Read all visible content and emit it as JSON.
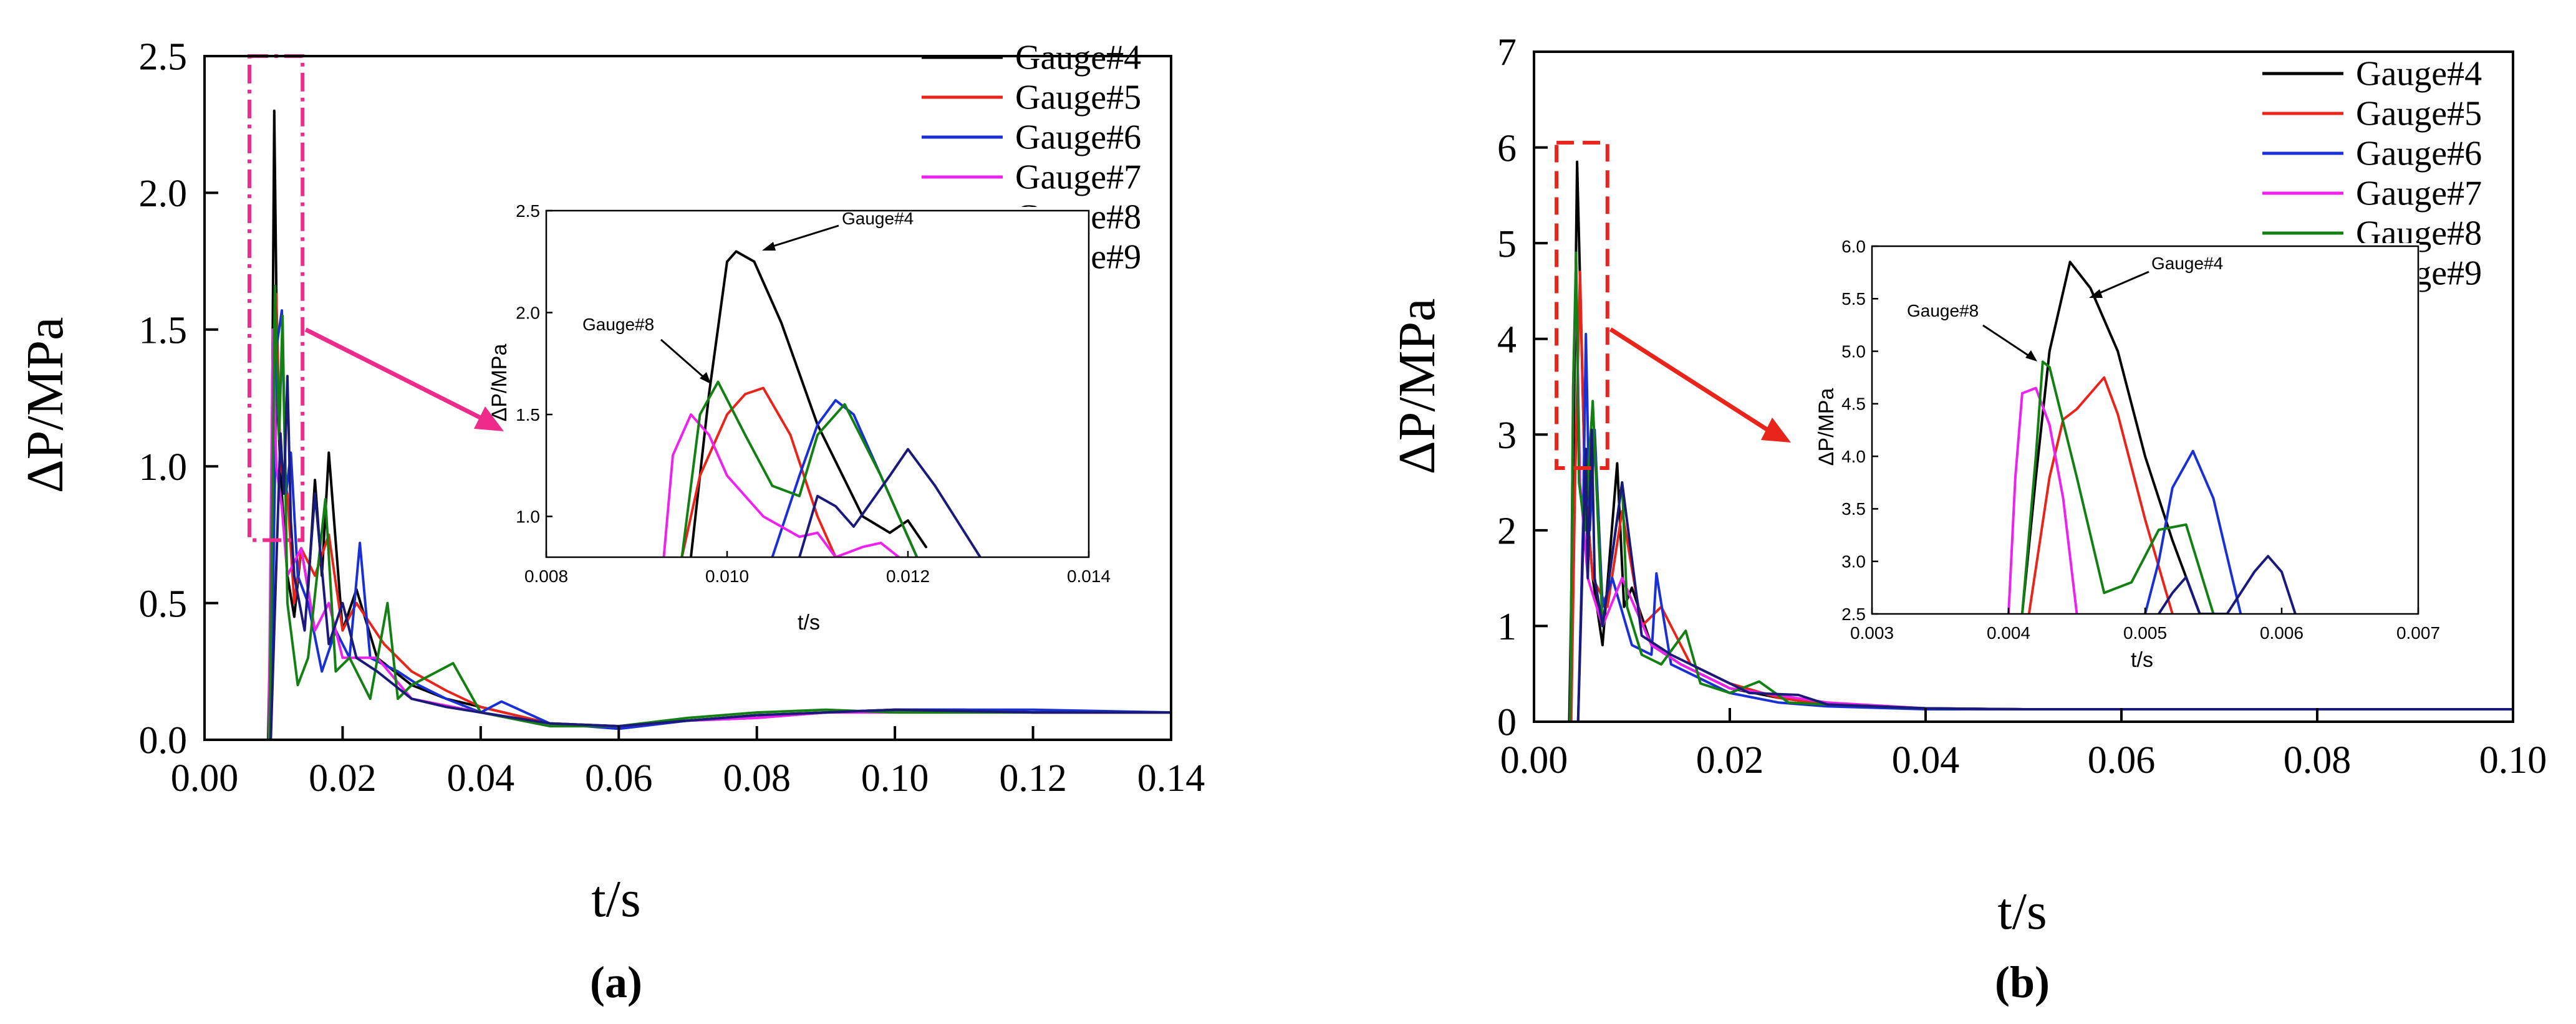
{
  "colors": {
    "Gauge#4": "#000000",
    "Gauge#5": "#e8241b",
    "Gauge#6": "#1830d6",
    "Gauge#7": "#ee22ee",
    "Gauge#8": "#128012",
    "Gauge#9": "#1a1a7a",
    "highlight_a": "#ee2a8a",
    "highlight_b": "#e8241b"
  },
  "chart_data": [
    {
      "type": "line",
      "panel_label": "(a)",
      "xlabel": "t/s",
      "ylabel": "ΔP/MPa",
      "xlim": [
        0,
        0.14
      ],
      "ylim": [
        0,
        2.5
      ],
      "xticks": [
        "0.00",
        "0.02",
        "0.04",
        "0.06",
        "0.08",
        "0.10",
        "0.12",
        "0.14"
      ],
      "yticks": [
        "0.0",
        "0.5",
        "1.0",
        "1.5",
        "2.0",
        "2.5"
      ],
      "legend": "top-right",
      "highlight_box": {
        "x": [
          0.0065,
          0.0142
        ],
        "y": [
          0.73,
          2.5
        ],
        "style": "dash-dot"
      },
      "series": [
        {
          "name": "Gauge#4",
          "x": [
            0,
            0.0092,
            0.0096,
            0.0101,
            0.0106,
            0.0112,
            0.012,
            0.013,
            0.014,
            0.015,
            0.016,
            0.017,
            0.018,
            0.02,
            0.022,
            0.025,
            0.03,
            0.035,
            0.04,
            0.05,
            0.06,
            0.07,
            0.08,
            0.09,
            0.1,
            0.11,
            0.12,
            0.14
          ],
          "y": [
            0,
            0,
            0.5,
            2.3,
            1.2,
            0.9,
            0.6,
            0.45,
            0.7,
            0.55,
            0.95,
            0.6,
            1.05,
            0.4,
            0.55,
            0.3,
            0.2,
            0.15,
            0.12,
            0.06,
            0.05,
            0.07,
            0.09,
            0.1,
            0.11,
            0.11,
            0.1,
            0.1
          ]
        },
        {
          "name": "Gauge#5",
          "x": [
            0,
            0.0095,
            0.0099,
            0.0104,
            0.011,
            0.012,
            0.013,
            0.014,
            0.016,
            0.018,
            0.02,
            0.022,
            0.026,
            0.03,
            0.035,
            0.04,
            0.05,
            0.06,
            0.07,
            0.08,
            0.09,
            0.1,
            0.12,
            0.14
          ],
          "y": [
            0,
            0,
            0.6,
            1.63,
            1.0,
            0.9,
            0.5,
            0.7,
            0.6,
            0.75,
            0.4,
            0.5,
            0.35,
            0.25,
            0.18,
            0.12,
            0.06,
            0.05,
            0.07,
            0.09,
            0.1,
            0.11,
            0.1,
            0.1
          ]
        },
        {
          "name": "Gauge#6",
          "x": [
            0,
            0.0095,
            0.0099,
            0.0105,
            0.0112,
            0.0118,
            0.0125,
            0.0135,
            0.015,
            0.017,
            0.019,
            0.021,
            0.0225,
            0.024,
            0.028,
            0.031,
            0.035,
            0.04,
            0.043,
            0.05,
            0.06,
            0.07,
            0.08,
            0.09,
            0.1,
            0.12,
            0.14
          ],
          "y": [
            0,
            0,
            0.5,
            1.45,
            1.57,
            0.9,
            1.05,
            0.6,
            0.5,
            0.25,
            0.4,
            0.3,
            0.72,
            0.3,
            0.25,
            0.2,
            0.15,
            0.1,
            0.14,
            0.06,
            0.04,
            0.07,
            0.08,
            0.1,
            0.11,
            0.11,
            0.1
          ]
        },
        {
          "name": "Gauge#7",
          "x": [
            0,
            0.0093,
            0.0096,
            0.0099,
            0.0104,
            0.0112,
            0.012,
            0.014,
            0.016,
            0.018,
            0.02,
            0.025,
            0.03,
            0.04,
            0.05,
            0.06,
            0.07,
            0.08,
            0.09,
            0.1,
            0.12,
            0.14
          ],
          "y": [
            0,
            0,
            0.8,
            1.5,
            1.0,
            0.85,
            0.6,
            0.7,
            0.4,
            0.5,
            0.3,
            0.3,
            0.15,
            0.1,
            0.05,
            0.05,
            0.07,
            0.08,
            0.1,
            0.1,
            0.1,
            0.1
          ]
        },
        {
          "name": "Gauge#8",
          "x": [
            0,
            0.0094,
            0.0098,
            0.0102,
            0.0108,
            0.0113,
            0.012,
            0.0135,
            0.015,
            0.0175,
            0.019,
            0.021,
            0.024,
            0.0265,
            0.028,
            0.03,
            0.036,
            0.04,
            0.05,
            0.06,
            0.07,
            0.08,
            0.09,
            0.1,
            0.12,
            0.14
          ],
          "y": [
            0,
            0,
            0.8,
            1.66,
            1.1,
            1.55,
            0.5,
            0.2,
            0.3,
            0.88,
            0.25,
            0.3,
            0.15,
            0.5,
            0.15,
            0.2,
            0.28,
            0.1,
            0.05,
            0.05,
            0.08,
            0.1,
            0.11,
            0.1,
            0.1,
            0.1
          ]
        },
        {
          "name": "Gauge#9",
          "x": [
            0,
            0.0096,
            0.0101,
            0.011,
            0.0115,
            0.012,
            0.0125,
            0.013,
            0.0145,
            0.016,
            0.018,
            0.02,
            0.022,
            0.025,
            0.03,
            0.035,
            0.04,
            0.05,
            0.06,
            0.07,
            0.08,
            0.09,
            0.1,
            0.12,
            0.14
          ],
          "y": [
            0,
            0,
            0.4,
            1.12,
            0.9,
            1.33,
            0.8,
            0.6,
            0.4,
            0.9,
            0.35,
            0.5,
            0.3,
            0.25,
            0.15,
            0.12,
            0.1,
            0.06,
            0.05,
            0.07,
            0.09,
            0.1,
            0.11,
            0.1,
            0.1
          ]
        }
      ],
      "inset": {
        "xlabel": "t/s",
        "ylabel": "ΔP/MPa",
        "xlim": [
          0.008,
          0.014
        ],
        "ylim": [
          0.8,
          2.5
        ],
        "xticks": [
          "0.008",
          "0.010",
          "0.012",
          "0.014"
        ],
        "yticks": [
          "1.0",
          "1.5",
          "2.0",
          "2.5"
        ],
        "annotations": [
          "Gauge#4",
          "Gauge#8"
        ],
        "series": [
          {
            "name": "Gauge#4",
            "x": [
              0.0096,
              0.0098,
              0.01,
              0.0101,
              0.0103,
              0.0106,
              0.011,
              0.0115,
              0.0118,
              0.012,
              0.0122
            ],
            "y": [
              0.8,
              1.6,
              2.25,
              2.3,
              2.25,
              1.95,
              1.45,
              1.0,
              0.92,
              0.98,
              0.85
            ]
          },
          {
            "name": "Gauge#5",
            "x": [
              0.0095,
              0.0097,
              0.01,
              0.0102,
              0.0104,
              0.0107,
              0.011,
              0.0112
            ],
            "y": [
              0.8,
              1.2,
              1.5,
              1.6,
              1.63,
              1.4,
              1.0,
              0.8
            ]
          },
          {
            "name": "Gauge#6",
            "x": [
              0.0105,
              0.0108,
              0.011,
              0.0112,
              0.0114,
              0.0117,
              0.0121
            ],
            "y": [
              0.8,
              1.2,
              1.45,
              1.57,
              1.5,
              1.2,
              0.8
            ]
          },
          {
            "name": "Gauge#7",
            "x": [
              0.0093,
              0.0094,
              0.0096,
              0.0098,
              0.01,
              0.0104,
              0.0108,
              0.011,
              0.0112,
              0.0115,
              0.0117,
              0.0119
            ],
            "y": [
              0.8,
              1.3,
              1.5,
              1.4,
              1.2,
              1.0,
              0.9,
              0.92,
              0.8,
              0.85,
              0.87,
              0.8
            ]
          },
          {
            "name": "Gauge#8",
            "x": [
              0.0095,
              0.0097,
              0.0099,
              0.0102,
              0.0105,
              0.0108,
              0.011,
              0.0113,
              0.0117,
              0.0121
            ],
            "y": [
              0.8,
              1.5,
              1.66,
              1.4,
              1.15,
              1.1,
              1.4,
              1.55,
              1.2,
              0.8
            ]
          },
          {
            "name": "Gauge#9",
            "x": [
              0.0108,
              0.011,
              0.0112,
              0.0114,
              0.0118,
              0.012,
              0.0123,
              0.0128
            ],
            "y": [
              0.8,
              1.1,
              1.05,
              0.95,
              1.2,
              1.33,
              1.15,
              0.8
            ]
          }
        ]
      }
    },
    {
      "type": "line",
      "panel_label": "(b)",
      "xlabel": "t/s",
      "ylabel": "ΔP/MPa",
      "xlim": [
        0,
        0.1
      ],
      "ylim": [
        0,
        7
      ],
      "xticks": [
        "0.00",
        "0.02",
        "0.04",
        "0.06",
        "0.08",
        "0.10"
      ],
      "yticks": [
        "0",
        "1",
        "2",
        "3",
        "4",
        "5",
        "6",
        "7"
      ],
      "legend": "top-right",
      "highlight_box": {
        "x": [
          0.0023,
          0.0075
        ],
        "y": [
          2.65,
          6.05
        ],
        "style": "dashed"
      },
      "series": [
        {
          "name": "Gauge#4",
          "x": [
            0,
            0.0036,
            0.004,
            0.0044,
            0.0048,
            0.0052,
            0.006,
            0.007,
            0.0085,
            0.0092,
            0.01,
            0.012,
            0.015,
            0.02,
            0.025,
            0.03,
            0.04,
            0.05,
            0.06,
            0.08,
            0.1
          ],
          "y": [
            0,
            0,
            2.5,
            5.85,
            4.2,
            2.5,
            1.5,
            0.8,
            2.7,
            1.2,
            1.4,
            0.8,
            0.6,
            0.35,
            0.25,
            0.18,
            0.14,
            0.13,
            0.13,
            0.13,
            0.13
          ]
        },
        {
          "name": "Gauge#5",
          "x": [
            0,
            0.0038,
            0.0042,
            0.0047,
            0.0052,
            0.006,
            0.0075,
            0.009,
            0.011,
            0.013,
            0.016,
            0.02,
            0.025,
            0.03,
            0.04,
            0.05,
            0.06,
            0.08,
            0.1
          ],
          "y": [
            0,
            0,
            2.5,
            4.7,
            2.5,
            1.5,
            1.2,
            2.2,
            1.0,
            1.2,
            0.6,
            0.4,
            0.25,
            0.18,
            0.14,
            0.13,
            0.13,
            0.13,
            0.13
          ]
        },
        {
          "name": "Gauge#6",
          "x": [
            0,
            0.0045,
            0.005,
            0.0053,
            0.0057,
            0.0062,
            0.007,
            0.008,
            0.01,
            0.012,
            0.0125,
            0.014,
            0.016,
            0.02,
            0.025,
            0.03,
            0.04,
            0.05,
            0.06,
            0.08,
            0.1
          ],
          "y": [
            0,
            0,
            2.0,
            4.05,
            2.0,
            3.05,
            1.2,
            1.5,
            0.8,
            0.7,
            1.55,
            0.6,
            0.5,
            0.3,
            0.2,
            0.16,
            0.13,
            0.13,
            0.13,
            0.13,
            0.13
          ]
        },
        {
          "name": "Gauge#7",
          "x": [
            0,
            0.0037,
            0.004,
            0.0043,
            0.0047,
            0.0055,
            0.007,
            0.009,
            0.012,
            0.015,
            0.02,
            0.03,
            0.04,
            0.05,
            0.06,
            0.08,
            0.1
          ],
          "y": [
            0,
            0,
            3.5,
            4.65,
            2.5,
            1.5,
            1.0,
            1.5,
            0.8,
            0.6,
            0.35,
            0.2,
            0.14,
            0.13,
            0.13,
            0.13,
            0.13
          ]
        },
        {
          "name": "Gauge#8",
          "x": [
            0,
            0.0037,
            0.004,
            0.0043,
            0.0046,
            0.0052,
            0.006,
            0.007,
            0.009,
            0.0095,
            0.011,
            0.013,
            0.0155,
            0.017,
            0.02,
            0.023,
            0.026,
            0.03,
            0.04,
            0.05,
            0.06,
            0.08,
            0.1
          ],
          "y": [
            0,
            0,
            3.5,
            4.9,
            2.5,
            2.0,
            3.35,
            1.0,
            2.5,
            1.2,
            0.7,
            0.6,
            0.95,
            0.4,
            0.3,
            0.42,
            0.2,
            0.18,
            0.14,
            0.13,
            0.13,
            0.13,
            0.13
          ]
        },
        {
          "name": "Gauge#9",
          "x": [
            0,
            0.0045,
            0.005,
            0.0053,
            0.0055,
            0.0059,
            0.0062,
            0.007,
            0.009,
            0.011,
            0.014,
            0.018,
            0.022,
            0.027,
            0.03,
            0.04,
            0.05,
            0.06,
            0.08,
            0.1
          ],
          "y": [
            0,
            0,
            1.8,
            2.85,
            1.5,
            3.05,
            1.5,
            1.0,
            2.5,
            0.9,
            0.7,
            0.5,
            0.3,
            0.28,
            0.18,
            0.14,
            0.13,
            0.13,
            0.13,
            0.13
          ]
        }
      ],
      "inset": {
        "xlabel": "t/s",
        "ylabel": "ΔP/MPa",
        "xlim": [
          0.003,
          0.007
        ],
        "ylim": [
          2.5,
          6.0
        ],
        "xticks": [
          "0.003",
          "0.004",
          "0.005",
          "0.006",
          "0.007"
        ],
        "yticks": [
          "2.5",
          "3.0",
          "3.5",
          "4.0",
          "4.5",
          "5.0",
          "5.5",
          "6.0"
        ],
        "annotations": [
          "Gauge#4",
          "Gauge#8"
        ],
        "series": [
          {
            "name": "Gauge#4",
            "x": [
              0.0041,
              0.0042,
              0.0043,
              0.00445,
              0.0046,
              0.0048,
              0.005,
              0.0052,
              0.0054
            ],
            "y": [
              2.5,
              3.8,
              5.0,
              5.85,
              5.6,
              5.0,
              4.0,
              3.2,
              2.5
            ]
          },
          {
            "name": "Gauge#5",
            "x": [
              0.00415,
              0.0043,
              0.0044,
              0.0045,
              0.0046,
              0.0047,
              0.0048,
              0.005,
              0.0052
            ],
            "y": [
              2.5,
              3.8,
              4.35,
              4.45,
              4.6,
              4.75,
              4.4,
              3.4,
              2.5
            ]
          },
          {
            "name": "Gauge#6",
            "x": [
              0.005,
              0.0051,
              0.0052,
              0.00535,
              0.0055,
              0.0057
            ],
            "y": [
              2.5,
              3.0,
              3.7,
              4.05,
              3.6,
              2.5
            ]
          },
          {
            "name": "Gauge#7",
            "x": [
              0.004,
              0.00405,
              0.0041,
              0.0042,
              0.0043,
              0.0044,
              0.0045
            ],
            "y": [
              2.5,
              3.8,
              4.6,
              4.65,
              4.3,
              3.6,
              2.5
            ]
          },
          {
            "name": "Gauge#8",
            "x": [
              0.0041,
              0.0042,
              0.00425,
              0.0043,
              0.0045,
              0.0047,
              0.0049,
              0.0051,
              0.0053,
              0.0055
            ],
            "y": [
              2.5,
              4.0,
              4.9,
              4.85,
              3.8,
              2.7,
              2.8,
              3.3,
              3.35,
              2.5
            ]
          },
          {
            "name": "Gauge#9",
            "x": [
              0.0051,
              0.0052,
              0.0053,
              0.0054,
              0.0056,
              0.0058,
              0.0059,
              0.006,
              0.0061
            ],
            "y": [
              2.5,
              2.7,
              2.85,
              2.5,
              2.5,
              2.9,
              3.05,
              2.9,
              2.5
            ]
          }
        ]
      }
    }
  ]
}
